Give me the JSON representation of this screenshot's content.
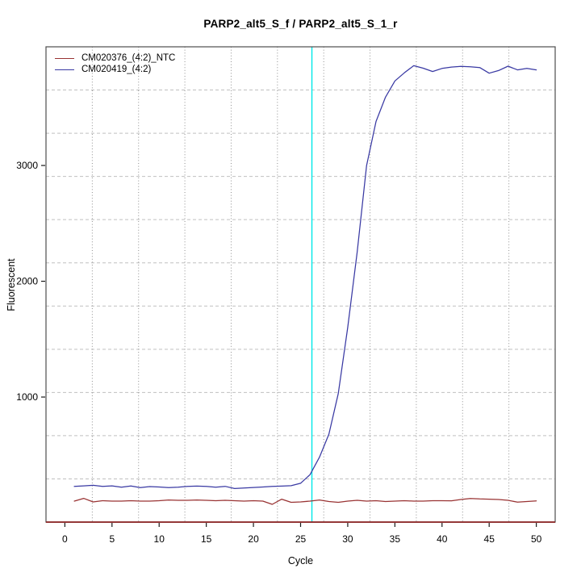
{
  "colors": {
    "background": "#ffffff",
    "box_border": "#4d4d4d",
    "tick": "#1a1a1a",
    "grid_vertical_dotted": "#8f8f8f",
    "grid_horizontal_dashed": "#c0c0c0",
    "threshold_line": "#00e8e8",
    "x_axis_baseline": "#8b2121",
    "ntc_series": "#993333",
    "sample_series": "#3939a3"
  },
  "chart_data": {
    "type": "line",
    "title": "PARP2_alt5_S_f / PARP2_alt5_S_1_r",
    "xlabel": "Cycle",
    "ylabel": "Fluorescent",
    "xlim": [
      -2,
      52
    ],
    "ylim": [
      -80,
      4025
    ],
    "x_ticks": [
      0,
      5,
      10,
      15,
      20,
      25,
      30,
      35,
      40,
      45,
      50
    ],
    "y_ticks": [
      1000,
      2000,
      3000
    ],
    "grid": {
      "on": true,
      "vertical_divisions": 11,
      "horizontal_divisions": 11
    },
    "threshold_line_x": 26.2,
    "legend_position": "top-left",
    "x": [
      1,
      2,
      3,
      4,
      5,
      6,
      7,
      8,
      9,
      10,
      11,
      12,
      13,
      14,
      15,
      16,
      17,
      18,
      19,
      20,
      21,
      22,
      23,
      24,
      25,
      26,
      27,
      28,
      29,
      30,
      31,
      32,
      33,
      34,
      35,
      36,
      37,
      38,
      39,
      40,
      41,
      42,
      43,
      44,
      45,
      46,
      47,
      48,
      49,
      50
    ],
    "series": [
      {
        "name": "CM020376_(4:2)_NTC",
        "color": "#993333",
        "values": [
          101,
          125,
          94,
          105,
          101,
          101,
          105,
          101,
          101,
          105,
          111,
          108,
          108,
          111,
          108,
          105,
          108,
          105,
          101,
          105,
          101,
          73,
          118,
          91,
          94,
          101,
          111,
          98,
          91,
          101,
          108,
          101,
          105,
          98,
          101,
          105,
          101,
          101,
          105,
          105,
          104,
          115,
          124,
          120,
          118,
          115,
          108,
          92,
          98,
          103
        ]
      },
      {
        "name": "CM020419_(4:2)",
        "color": "#3939a3",
        "values": [
          228,
          233,
          238,
          229,
          233,
          222,
          232,
          218,
          227,
          223,
          218,
          222,
          228,
          231,
          228,
          222,
          229,
          210,
          214,
          219,
          223,
          228,
          231,
          234,
          255,
          330,
          480,
          680,
          1030,
          1600,
          2250,
          3000,
          3380,
          3590,
          3730,
          3800,
          3862,
          3840,
          3812,
          3838,
          3850,
          3856,
          3853,
          3846,
          3797,
          3820,
          3858,
          3826,
          3838,
          3826
        ]
      }
    ]
  }
}
